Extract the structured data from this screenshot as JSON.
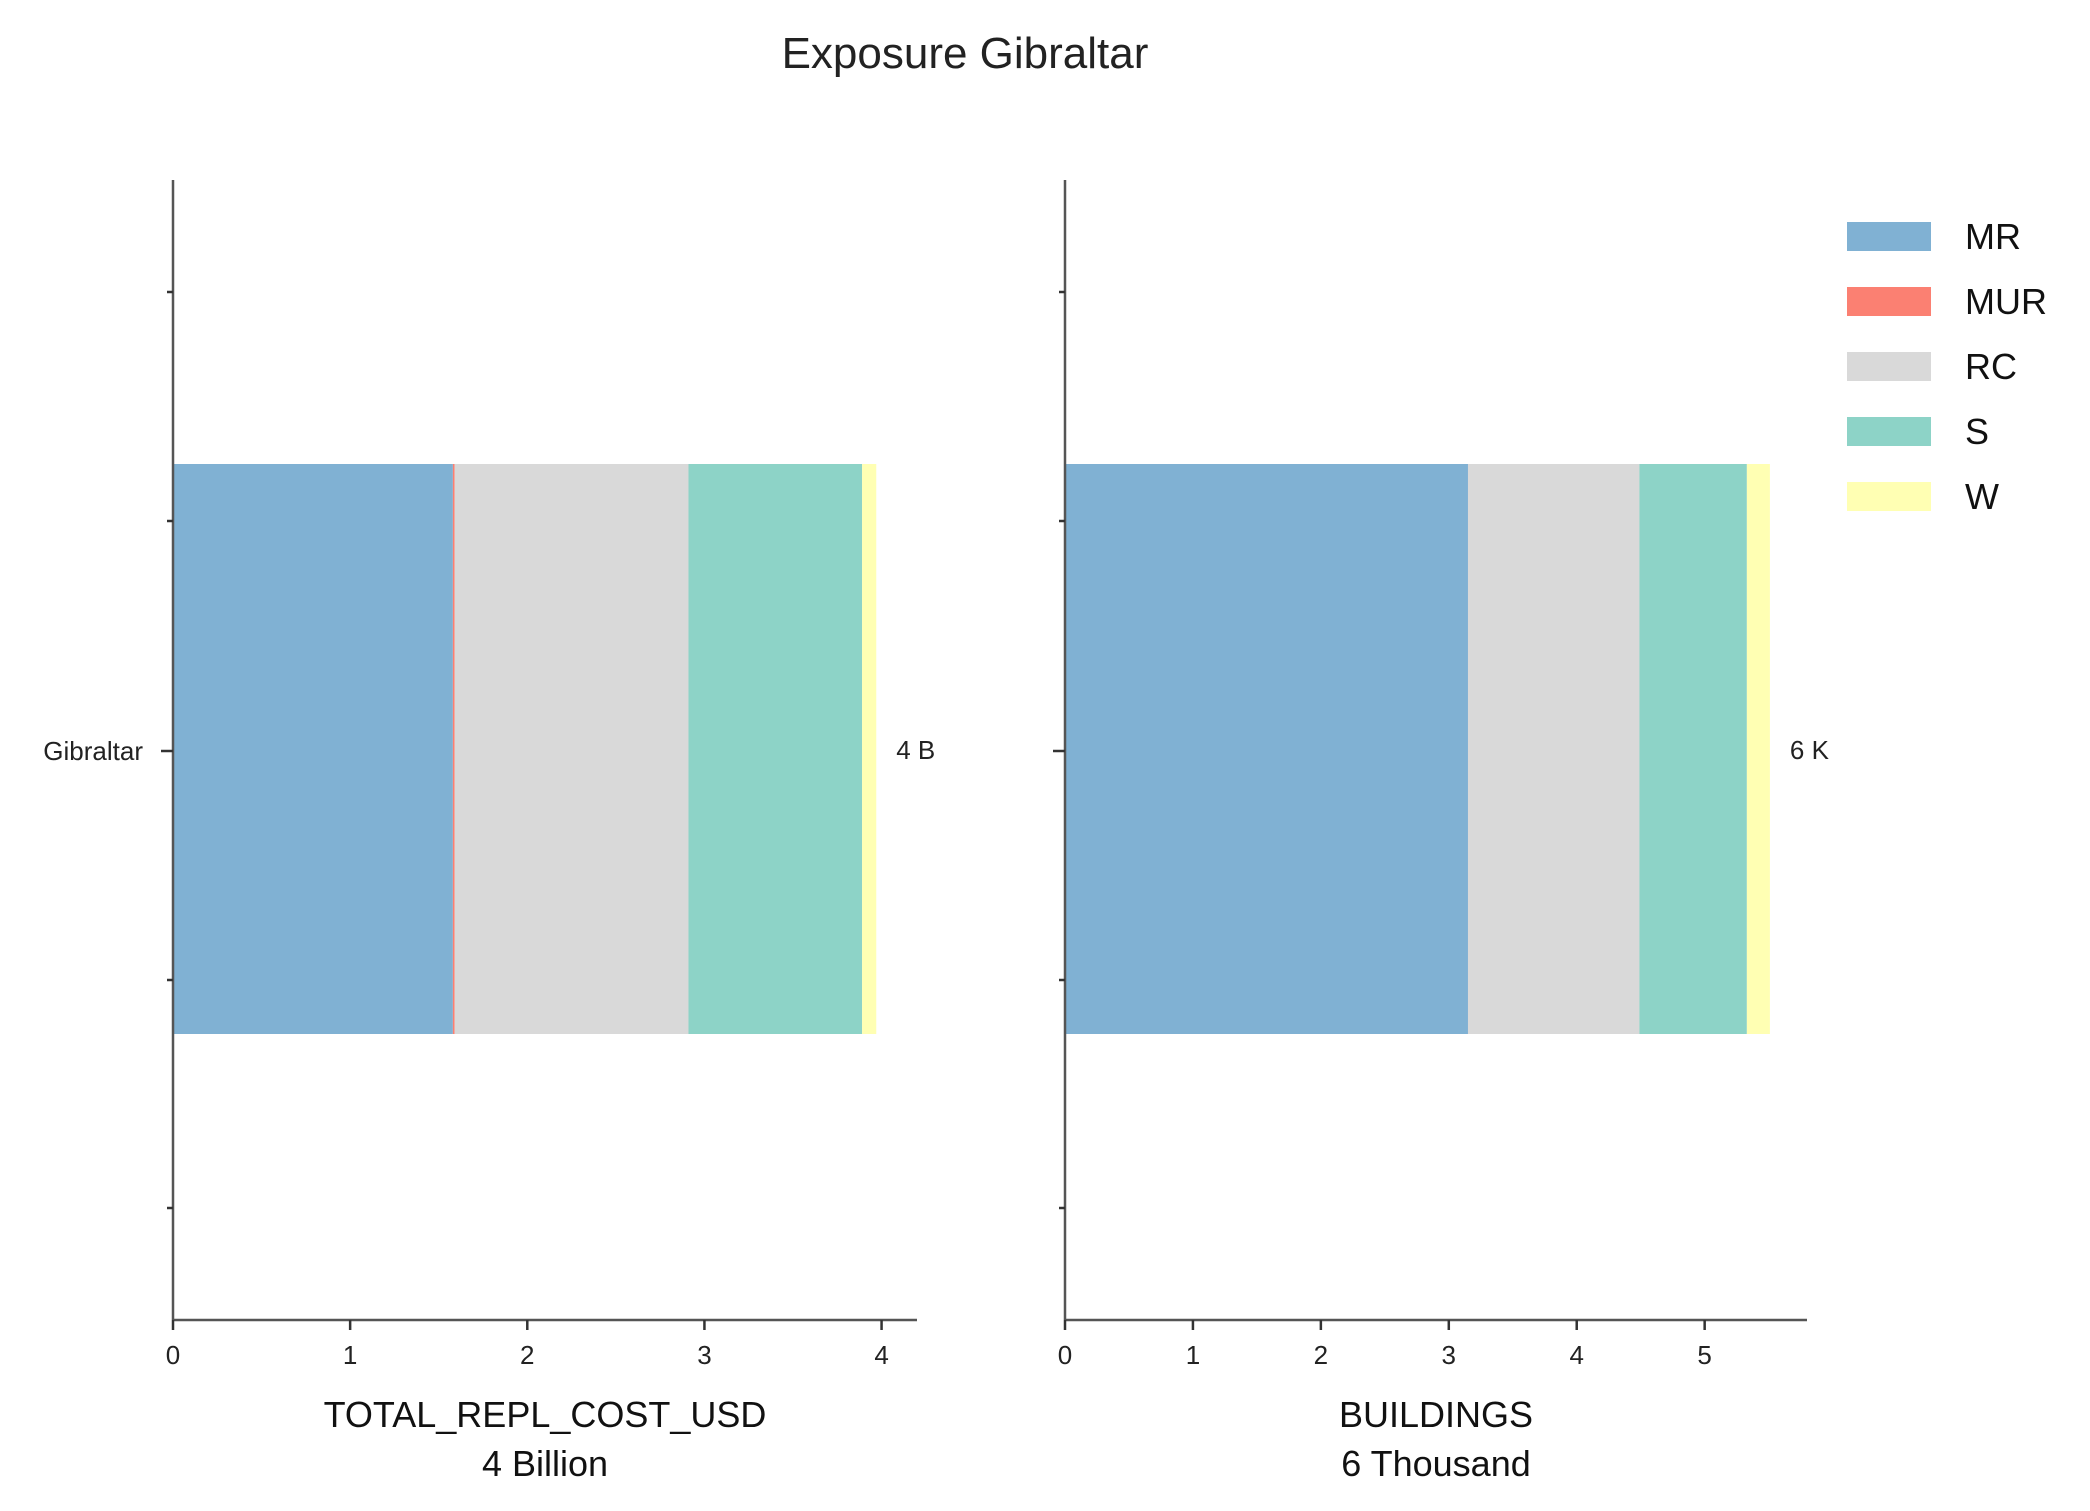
{
  "title": "Exposure Gibraltar",
  "legend": [
    {
      "name": "MR",
      "color": "#80b1d3"
    },
    {
      "name": "MUR",
      "color": "#fb8072"
    },
    {
      "name": "RC",
      "color": "#d9d9d9"
    },
    {
      "name": "S",
      "color": "#8dd3c7"
    },
    {
      "name": "W",
      "color": "#ffffb3"
    }
  ],
  "chart_data": [
    {
      "type": "bar",
      "orientation": "horizontal",
      "stacked": true,
      "categories": [
        "Gibraltar"
      ],
      "xlabel": "TOTAL_REPL_COST_USD",
      "xlabel_sub": "4 Billion",
      "xlim": [
        0,
        4.2
      ],
      "xticks": [
        0,
        1,
        2,
        3,
        4
      ],
      "series": [
        {
          "name": "MR",
          "values": [
            1.58
          ]
        },
        {
          "name": "MUR",
          "values": [
            0.01
          ]
        },
        {
          "name": "RC",
          "values": [
            1.32
          ]
        },
        {
          "name": "S",
          "values": [
            0.98
          ]
        },
        {
          "name": "W",
          "values": [
            0.08
          ]
        }
      ],
      "total_label": "4 B"
    },
    {
      "type": "bar",
      "orientation": "horizontal",
      "stacked": true,
      "categories": [
        "Gibraltar"
      ],
      "xlabel": "BUILDINGS",
      "xlabel_sub": "6 Thousand",
      "xlim": [
        0,
        5.8
      ],
      "xticks": [
        0,
        1,
        2,
        3,
        4,
        5
      ],
      "series": [
        {
          "name": "MR",
          "values": [
            3.15
          ]
        },
        {
          "name": "MUR",
          "values": [
            0.0
          ]
        },
        {
          "name": "RC",
          "values": [
            1.34
          ]
        },
        {
          "name": "S",
          "values": [
            0.84
          ]
        },
        {
          "name": "W",
          "values": [
            0.18
          ]
        }
      ],
      "total_label": "6 K"
    }
  ]
}
